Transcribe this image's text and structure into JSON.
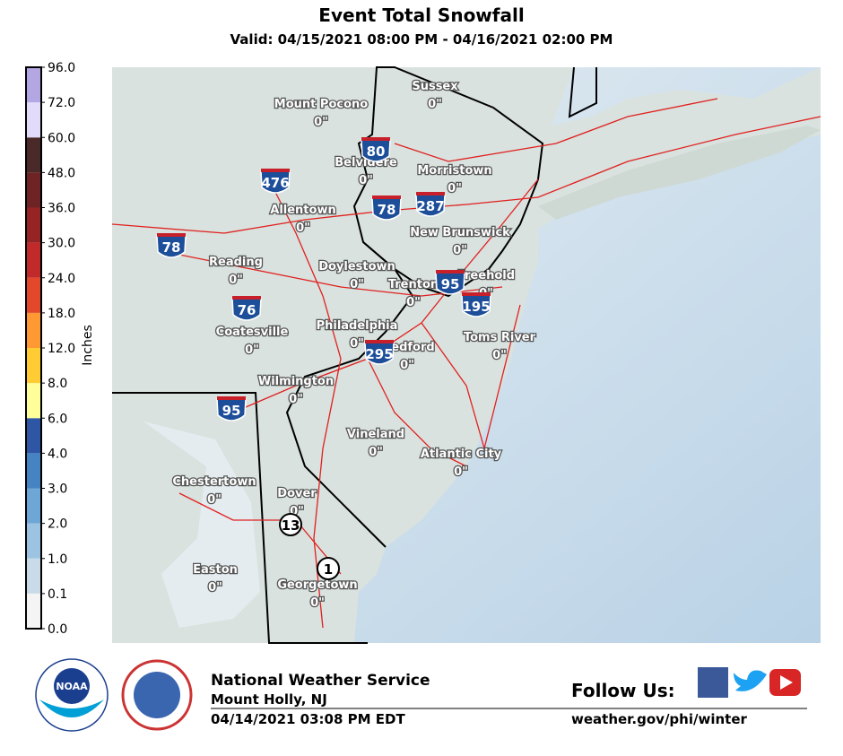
{
  "header": {
    "title": "Event Total Snowfall",
    "subtitle": "Valid: 04/15/2021 08:00 PM - 04/16/2021 02:00 PM"
  },
  "colorbar": {
    "label": "Inches",
    "levels": [
      "0.0",
      "0.1",
      "1.0",
      "2.0",
      "3.0",
      "4.0",
      "6.0",
      "8.0",
      "12.0",
      "18.0",
      "24.0",
      "30.0",
      "36.0",
      "48.0",
      "60.0",
      "72.0",
      "96.0"
    ],
    "colors": [
      "#f4f4f4",
      "#c9dae8",
      "#9cc4e2",
      "#6ea6d6",
      "#4683c2",
      "#2e56a4",
      "#ffff99",
      "#ffcc33",
      "#ff9933",
      "#e4482a",
      "#c02a2a",
      "#962424",
      "#6e2424",
      "#4a2a28",
      "#e2dcfa",
      "#b4a6e2",
      "#8a70b8"
    ]
  },
  "cities": [
    {
      "name": "Sussex",
      "value": "0\""
    },
    {
      "name": "Mount Pocono",
      "value": "0\""
    },
    {
      "name": "Belvidere",
      "value": "0\""
    },
    {
      "name": "Morristown",
      "value": "0\""
    },
    {
      "name": "Allentown",
      "value": "0\""
    },
    {
      "name": "New Brunswick",
      "value": "0\""
    },
    {
      "name": "Reading",
      "value": "0\""
    },
    {
      "name": "Doylestown",
      "value": "0\""
    },
    {
      "name": "Trenton",
      "value": "0\""
    },
    {
      "name": "Freehold",
      "value": "0\""
    },
    {
      "name": "Coatesville",
      "value": "0\""
    },
    {
      "name": "Philadelphia",
      "value": "0\""
    },
    {
      "name": "Medford",
      "value": "0\""
    },
    {
      "name": "Toms River",
      "value": "0\""
    },
    {
      "name": "Wilmington",
      "value": "0\""
    },
    {
      "name": "Vineland",
      "value": "0\""
    },
    {
      "name": "Atlantic City",
      "value": "0\""
    },
    {
      "name": "Chestertown",
      "value": "0\""
    },
    {
      "name": "Dover",
      "value": "0\""
    },
    {
      "name": "Easton",
      "value": "0\""
    },
    {
      "name": "Georgetown",
      "value": "0\""
    }
  ],
  "highways": [
    "80",
    "476",
    "78",
    "287",
    "78",
    "95",
    "76",
    "195",
    "295",
    "95",
    "13",
    "1"
  ],
  "footer": {
    "noaa": "NOAA",
    "agency": "National Weather Service",
    "office": "Mount Holly, NJ",
    "issued": "04/14/2021 03:08 PM EDT",
    "follow": "Follow Us:",
    "url": "weather.gov/phi/winter"
  }
}
